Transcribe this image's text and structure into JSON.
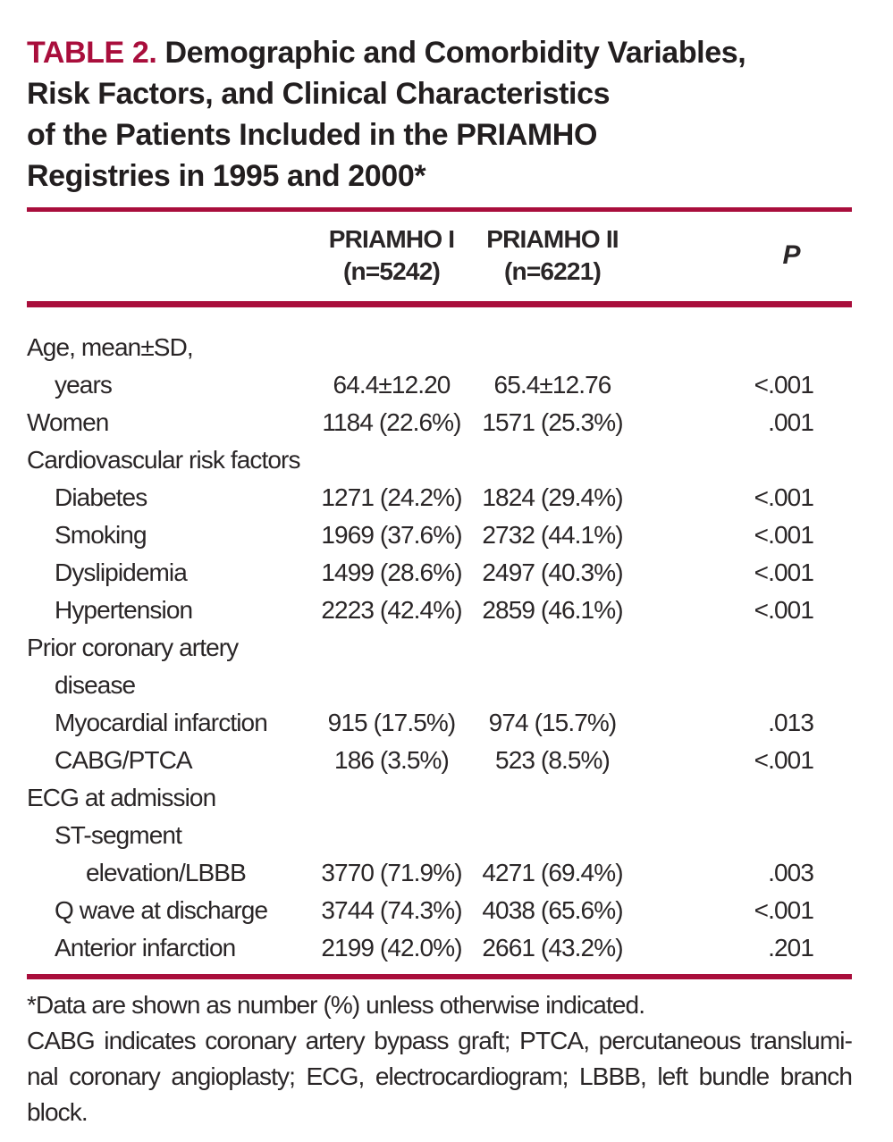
{
  "title": {
    "prefix": "TABLE 2.",
    "lines": [
      "Demographic and Comorbidity Variables,",
      "Risk Factors, and Clinical Characteristics",
      "of the Patients Included in the PRIAMHO",
      "Registries in 1995 and 2000*"
    ]
  },
  "table": {
    "columns": [
      {
        "name": "PRIAMHO I",
        "sub": "(n=5242)"
      },
      {
        "name": "PRIAMHO II",
        "sub": "(n=6221)"
      },
      {
        "name": "P"
      }
    ],
    "rows": [
      {
        "label": "Age, mean±SD,",
        "indent": 0,
        "values": null
      },
      {
        "label": "years",
        "indent": 1,
        "values": [
          "64.4±12.20",
          "65.4±12.76",
          "<.001"
        ]
      },
      {
        "label": "Women",
        "indent": 0,
        "values": [
          "1184 (22.6%)",
          "1571 (25.3%)",
          ".001"
        ]
      },
      {
        "label": "Cardiovascular risk factors",
        "indent": 0,
        "values": null
      },
      {
        "label": "Diabetes",
        "indent": 1,
        "values": [
          "1271 (24.2%)",
          "1824 (29.4%)",
          "<.001"
        ]
      },
      {
        "label": "Smoking",
        "indent": 1,
        "values": [
          "1969 (37.6%)",
          "2732 (44.1%)",
          "<.001"
        ]
      },
      {
        "label": "Dyslipidemia",
        "indent": 1,
        "values": [
          "1499 (28.6%)",
          "2497 (40.3%)",
          "<.001"
        ]
      },
      {
        "label": "Hypertension",
        "indent": 1,
        "values": [
          "2223 (42.4%)",
          "2859 (46.1%)",
          "<.001"
        ]
      },
      {
        "label": "Prior coronary artery",
        "indent": 0,
        "values": null
      },
      {
        "label": "disease",
        "indent": 1,
        "values": null
      },
      {
        "label": "Myocardial infarction",
        "indent": 1,
        "values": [
          "915 (17.5%)",
          "974 (15.7%)",
          ".013"
        ]
      },
      {
        "label": "CABG/PTCA",
        "indent": 1,
        "values": [
          "186 (3.5%)",
          "523 (8.5%)",
          "<.001"
        ]
      },
      {
        "label": "ECG at admission",
        "indent": 0,
        "values": null
      },
      {
        "label": "ST-segment",
        "indent": 1,
        "values": null
      },
      {
        "label": "elevation/LBBB",
        "indent": 2,
        "values": [
          "3770 (71.9%)",
          "4271 (69.4%)",
          ".003"
        ]
      },
      {
        "label": "Q wave at discharge",
        "indent": 1,
        "values": [
          "3744 (74.3%)",
          "4038 (65.6%)",
          "<.001"
        ]
      },
      {
        "label": "Anterior infarction",
        "indent": 1,
        "values": [
          "2199 (42.0%)",
          "2661 (43.2%)",
          ".201"
        ]
      }
    ]
  },
  "footnotes": {
    "data_note": "*Data are shown as number (%) unless otherwise indicated.",
    "abbr_note_lines": [
      "CABG indicates coronary artery bypass graft; PTCA, percutaneous translumi-",
      "nal coronary angioplasty; ECG, electrocardiogram; LBBB, left bundle branch",
      "block."
    ]
  },
  "colors": {
    "accent_red": "#a90e3c",
    "text": "#2a2627"
  }
}
